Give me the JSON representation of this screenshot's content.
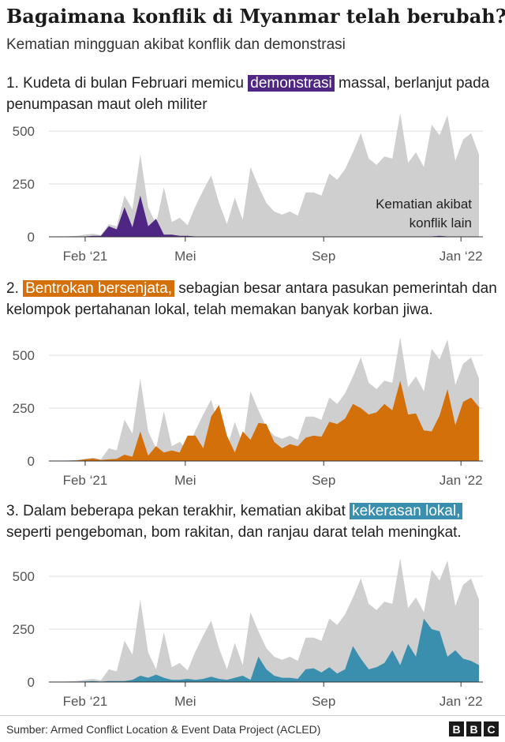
{
  "title": "Bagaimana konflik di Myanmar telah berubah?",
  "subtitle": "Kematian mingguan akibat konflik dan demonstrasi",
  "sections": [
    {
      "pre": "1. Kudeta di bulan Februari memicu ",
      "highlight": "demonstrasi",
      "post": " massal, berlanjut pada penumpasan maut oleh militer",
      "color": "#4f2683",
      "annotation_line1": "Kematian akibat",
      "annotation_line2": "konflik lain"
    },
    {
      "pre": "2. ",
      "highlight": "Bentrokan bersenjata,",
      "post": " sebagian besar antara pasukan pemerintah dan kelompok pertahanan lokal, telah memakan banyak korban jiwa.",
      "color": "#d4700a"
    },
    {
      "pre": "3. Dalam beberapa pekan terakhir, kematian akibat ",
      "highlight": "kekerasan lokal,",
      "post": " seperti pengeboman, bom rakitan, dan ranjau darat telah meningkat.",
      "color": "#3a8fae"
    }
  ],
  "axis": {
    "y_ticks": [
      "0",
      "250",
      "500"
    ],
    "x_ticks": [
      "Feb ‘21",
      "Mei",
      "Sep",
      "Jan ‘22"
    ]
  },
  "source": "Sumber: Armed Conflict Location & Event Data Project (ACLED)",
  "logo": [
    "B",
    "B",
    "C"
  ],
  "chart_data": {
    "type": "area",
    "x_unit": "week",
    "x_start": "2021-01-04",
    "ylim": [
      0,
      560
    ],
    "total": [
      2,
      2,
      3,
      5,
      10,
      15,
      8,
      60,
      50,
      195,
      130,
      390,
      140,
      60,
      235,
      70,
      90,
      55,
      145,
      220,
      290,
      160,
      60,
      185,
      80,
      330,
      240,
      160,
      120,
      105,
      120,
      100,
      210,
      210,
      195,
      300,
      270,
      320,
      400,
      490,
      370,
      340,
      380,
      370,
      585,
      350,
      400,
      330,
      530,
      480,
      575,
      360,
      460,
      490,
      390
    ],
    "series": [
      {
        "name": "demonstrasi",
        "values": [
          0,
          0,
          0,
          0,
          2,
          5,
          5,
          50,
          35,
          140,
          45,
          195,
          50,
          85,
          10,
          10,
          5,
          5,
          2,
          2,
          2,
          2,
          2,
          2,
          2,
          2,
          2,
          2,
          2,
          2,
          2,
          2,
          2,
          2,
          2,
          2,
          2,
          2,
          2,
          2,
          2,
          2,
          2,
          2,
          2,
          2,
          2,
          2,
          2,
          5,
          2,
          2,
          2,
          2,
          2
        ]
      },
      {
        "name": "bentrokan bersenjata",
        "values": [
          0,
          0,
          2,
          3,
          8,
          12,
          5,
          8,
          10,
          30,
          20,
          140,
          25,
          70,
          40,
          50,
          40,
          120,
          120,
          60,
          210,
          265,
          120,
          40,
          140,
          100,
          180,
          175,
          90,
          60,
          80,
          70,
          110,
          120,
          115,
          185,
          175,
          200,
          270,
          250,
          220,
          230,
          270,
          240,
          380,
          220,
          225,
          145,
          140,
          215,
          340,
          170,
          280,
          300,
          255
        ]
      },
      {
        "name": "kekerasan lokal",
        "values": [
          0,
          0,
          0,
          2,
          3,
          5,
          2,
          5,
          5,
          5,
          10,
          30,
          20,
          35,
          20,
          10,
          10,
          15,
          10,
          15,
          25,
          15,
          10,
          20,
          30,
          10,
          120,
          60,
          30,
          20,
          20,
          15,
          60,
          65,
          45,
          70,
          40,
          60,
          170,
          110,
          60,
          70,
          90,
          150,
          80,
          180,
          120,
          300,
          250,
          240,
          120,
          150,
          110,
          100,
          80
        ]
      }
    ]
  }
}
